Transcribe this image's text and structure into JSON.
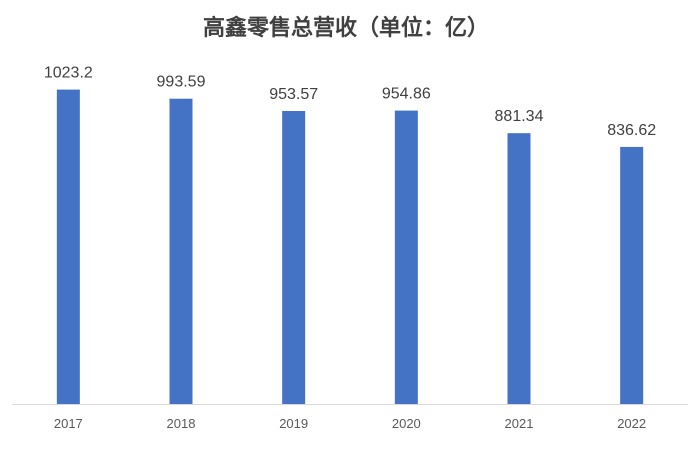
{
  "chart_data": {
    "type": "bar",
    "title": "高鑫零售总营收（单位：亿）",
    "xlabel": "",
    "ylabel": "",
    "categories": [
      "2017",
      "2018",
      "2019",
      "2020",
      "2021",
      "2022"
    ],
    "values": [
      1023.2,
      993.59,
      953.57,
      954.86,
      881.34,
      836.62
    ],
    "value_labels": [
      "1023.2",
      "993.59",
      "953.57",
      "954.86",
      "881.34",
      "836.62"
    ],
    "ylim": [
      0,
      1100
    ],
    "grid": false,
    "legend": "none",
    "colors": {
      "bar": "#4472C4",
      "axis": "#D9D9D9",
      "text": "#404040"
    }
  }
}
